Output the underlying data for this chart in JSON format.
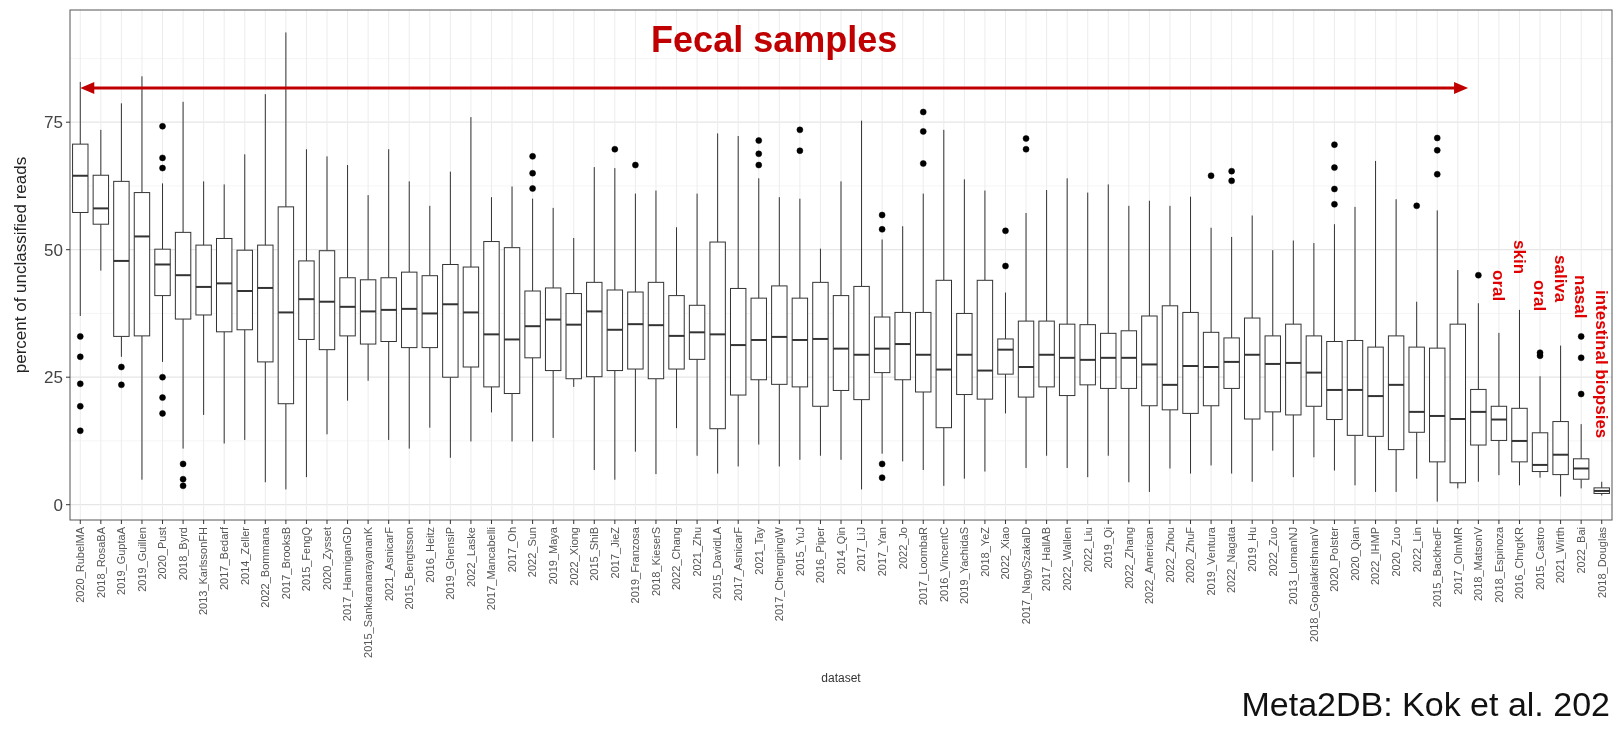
{
  "chart_data": {
    "type": "box",
    "ylabel": "percent of unclassified reads",
    "xlabel": "dataset",
    "ylim": [
      -3,
      97
    ],
    "yticks": [
      0,
      25,
      50,
      75
    ],
    "grid": true,
    "annotations": [
      "Fecal samples",
      "oral",
      "skin",
      "oral",
      "saliva",
      "nasal",
      "intestinal biopsies",
      "Meta2DB: Kok et al. 202"
    ],
    "categories": [
      "2020_RubelMA",
      "2018_RosaBA",
      "2019_GuptaA",
      "2019_Guillen",
      "2020_Pust",
      "2018_Byrd",
      "2013_KarlssonFH",
      "2017_Bedarf",
      "2014_Zeller",
      "2022_Bommana",
      "2017_BrooksB",
      "2015_FengQ",
      "2020_Zysset",
      "2017_HanniganGD",
      "2015_SankaranarayananK",
      "2021_AsnicarF",
      "2015_Bengtsson",
      "2016_Heitz",
      "2019_GhensiP",
      "2022_Laske",
      "2017_Mancabelli",
      "2017_Oh",
      "2022_Sun",
      "2019_Maya",
      "2022_Xiong",
      "2015_ShiB",
      "2017_JieZ",
      "2019_Franzosa",
      "2018_KieserS",
      "2022_Chang",
      "2021_Zhu",
      "2015_DavidLA",
      "2017_AsnicarF",
      "2021_Tay",
      "2017_ChengpingW",
      "2015_YuJ",
      "2016_Piper",
      "2014_Qin",
      "2017_LiJ",
      "2017_Yan",
      "2022_Jo",
      "2017_LoombaR",
      "2016_VincentC",
      "2019_YachidaS",
      "2018_YeZ",
      "2022_Xiao",
      "2017_NagySzakalD",
      "2017_HallAB",
      "2022_Wallen",
      "2022_Liu",
      "2019_Qi",
      "2022_Zhang",
      "2022_American",
      "2022_Zhou",
      "2020_ZhuF",
      "2019_Ventura",
      "2022_Nagata",
      "2019_Hu",
      "2022_Zuo",
      "2013_LomanNJ",
      "2018_GopalakrishnanV",
      "2020_Polster",
      "2020_Qian",
      "2022_IHMP",
      "2020_Zuo",
      "2022_Lin",
      "2015_BackhedF",
      "2017_OlmMR",
      "2018_MatsonV",
      "2018_Espinoza",
      "2016_ChngKR",
      "2015_Castro",
      "2021_Wirth",
      "2022_Bai",
      "2018_Douglas"
    ],
    "boxes": [
      {
        "low": 37,
        "q1": 57.3,
        "median": 64.5,
        "q3": 70.7,
        "high": 82.9,
        "outliers": [
          33,
          29,
          23.7,
          19.3,
          14.5
        ]
      },
      {
        "low": 45.9,
        "q1": 55,
        "median": 58.1,
        "q3": 64.6,
        "high": 73.5
      },
      {
        "low": 29,
        "q1": 33,
        "median": 47.8,
        "q3": 63.4,
        "high": 78.7,
        "outliers": [
          27,
          23.5
        ]
      },
      {
        "low": 4.9,
        "q1": 33.1,
        "median": 52.6,
        "q3": 61.2,
        "high": 84
      },
      {
        "low": 28,
        "q1": 41,
        "median": 47.1,
        "q3": 50.1,
        "high": 63,
        "outliers": [
          66,
          68,
          74.2,
          25,
          21,
          17.9
        ]
      },
      {
        "low": 11,
        "q1": 36.4,
        "median": 45,
        "q3": 53.4,
        "high": 79,
        "outliers": [
          8,
          5,
          3.7
        ]
      },
      {
        "low": 17.6,
        "q1": 37.2,
        "median": 42.7,
        "q3": 50.9,
        "high": 63.4
      },
      {
        "low": 12,
        "q1": 33.9,
        "median": 43.4,
        "q3": 52.2,
        "high": 62.8
      },
      {
        "low": 12.7,
        "q1": 34.3,
        "median": 41.9,
        "q3": 49.9,
        "high": 68.7
      },
      {
        "low": 4.4,
        "q1": 28,
        "median": 42.5,
        "q3": 50.9,
        "high": 80.5
      },
      {
        "low": 3,
        "q1": 19.8,
        "median": 37.7,
        "q3": 58.4,
        "high": 92.6
      },
      {
        "low": 5.4,
        "q1": 32.4,
        "median": 40.3,
        "q3": 47.8,
        "high": 69.7
      },
      {
        "low": 13.8,
        "q1": 30.4,
        "median": 39.8,
        "q3": 49.8,
        "high": 68.3
      },
      {
        "low": 20.4,
        "q1": 33.1,
        "median": 38.8,
        "q3": 44.5,
        "high": 66.6
      },
      {
        "low": 24.3,
        "q1": 31.5,
        "median": 37.9,
        "q3": 44.1,
        "high": 60.7
      },
      {
        "low": 12.7,
        "q1": 32,
        "median": 38.2,
        "q3": 44.5,
        "high": 69.7
      },
      {
        "low": 11,
        "q1": 30.8,
        "median": 38.4,
        "q3": 45.6,
        "high": 63.4
      },
      {
        "low": 15.1,
        "q1": 30.8,
        "median": 37.5,
        "q3": 44.9,
        "high": 58.6
      },
      {
        "low": 9.2,
        "q1": 25,
        "median": 39.3,
        "q3": 47.1,
        "high": 65.3
      },
      {
        "low": 12.4,
        "q1": 27,
        "median": 37.7,
        "q3": 46.6,
        "high": 76
      },
      {
        "low": 18.1,
        "q1": 23.1,
        "median": 33.4,
        "q3": 51.6,
        "high": 60.3
      },
      {
        "low": 12.4,
        "q1": 21.8,
        "median": 32.4,
        "q3": 50.4,
        "high": 62.4
      },
      {
        "low": 12.4,
        "q1": 28.8,
        "median": 35,
        "q3": 41.9,
        "high": 60,
        "outliers": [
          62,
          65,
          68.3
        ]
      },
      {
        "low": 13.1,
        "q1": 26.3,
        "median": 36.3,
        "q3": 42.5,
        "high": 58.2
      },
      {
        "low": 23.1,
        "q1": 24.7,
        "median": 35.3,
        "q3": 41.4,
        "high": 52.3
      },
      {
        "low": 6.8,
        "q1": 25.1,
        "median": 37.9,
        "q3": 43.6,
        "high": 66.2
      },
      {
        "low": 4.9,
        "q1": 26.3,
        "median": 34.3,
        "q3": 42.1,
        "high": 66,
        "outliers": [
          69.7
        ]
      },
      {
        "low": 10.4,
        "q1": 26.6,
        "median": 35.4,
        "q3": 41.7,
        "high": 61,
        "outliers": [
          66.6
        ]
      },
      {
        "low": 6,
        "q1": 24.7,
        "median": 35.2,
        "q3": 43.6,
        "high": 61.6
      },
      {
        "low": 15,
        "q1": 26.6,
        "median": 33.1,
        "q3": 41,
        "high": 54.4
      },
      {
        "low": 9.6,
        "q1": 28.5,
        "median": 33.8,
        "q3": 39.1,
        "high": 61
      },
      {
        "low": 6.1,
        "q1": 14.9,
        "median": 33.4,
        "q3": 51.5,
        "high": 72.8
      },
      {
        "low": 7.5,
        "q1": 21.5,
        "median": 31.3,
        "q3": 42.4,
        "high": 72.3
      },
      {
        "low": 11.8,
        "q1": 24.5,
        "median": 32.3,
        "q3": 40.5,
        "high": 64,
        "outliers": [
          66.6,
          68.8,
          71.4
        ]
      },
      {
        "low": 7.5,
        "q1": 23.6,
        "median": 32.9,
        "q3": 42.9,
        "high": 60.3
      },
      {
        "low": 8.8,
        "q1": 23.1,
        "median": 32.3,
        "q3": 40.5,
        "high": 60,
        "outliers": [
          69.4,
          73.5
        ]
      },
      {
        "low": 9.6,
        "q1": 19.3,
        "median": 32.5,
        "q3": 43.6,
        "high": 50.2
      },
      {
        "low": 8.8,
        "q1": 22.4,
        "median": 30.6,
        "q3": 41,
        "high": 63.4
      },
      {
        "low": 3,
        "q1": 20.6,
        "median": 29.4,
        "q3": 42.8,
        "high": 75.3
      },
      {
        "low": 10,
        "q1": 25.9,
        "median": 30.6,
        "q3": 36.8,
        "high": 52,
        "outliers": [
          54,
          56.8,
          8,
          5.3
        ]
      },
      {
        "low": 8.5,
        "q1": 24.5,
        "median": 31.5,
        "q3": 37.7,
        "high": 54.6
      },
      {
        "low": 6.8,
        "q1": 22.1,
        "median": 29.4,
        "q3": 37.7,
        "high": 61,
        "outliers": [
          66.9,
          73.2,
          77
        ]
      },
      {
        "low": 3.7,
        "q1": 15.1,
        "median": 26.5,
        "q3": 44,
        "high": 73.5
      },
      {
        "low": 5.1,
        "q1": 21.6,
        "median": 29.4,
        "q3": 37.5,
        "high": 63.8
      },
      {
        "low": 6.5,
        "q1": 20.7,
        "median": 26.3,
        "q3": 44,
        "high": 61.6
      },
      {
        "low": 17.9,
        "q1": 25.6,
        "median": 30.4,
        "q3": 32.5,
        "high": 41.6,
        "outliers": [
          46.8,
          53.7
        ]
      },
      {
        "low": 7.2,
        "q1": 21.1,
        "median": 27,
        "q3": 36,
        "high": 57.2,
        "outliers": [
          69.7,
          71.8
        ]
      },
      {
        "low": 9.6,
        "q1": 23.1,
        "median": 29.4,
        "q3": 36,
        "high": 61.7
      },
      {
        "low": 7.2,
        "q1": 21.4,
        "median": 28.8,
        "q3": 35.4,
        "high": 64
      },
      {
        "low": 5.4,
        "q1": 23.5,
        "median": 28.4,
        "q3": 35.3,
        "high": 61.2
      },
      {
        "low": 9.6,
        "q1": 22.8,
        "median": 28.8,
        "q3": 33.6,
        "high": 62.8
      },
      {
        "low": 4.4,
        "q1": 22.8,
        "median": 28.8,
        "q3": 34.1,
        "high": 58.6
      },
      {
        "low": 2.5,
        "q1": 19.4,
        "median": 27.5,
        "q3": 37,
        "high": 59.6
      },
      {
        "low": 7.1,
        "q1": 18.6,
        "median": 23.5,
        "q3": 39,
        "high": 58.6
      },
      {
        "low": 6.1,
        "q1": 17.9,
        "median": 27.2,
        "q3": 37.7,
        "high": 60.4
      },
      {
        "low": 7.7,
        "q1": 19.4,
        "median": 27,
        "q3": 33.8,
        "high": 54.3,
        "outliers": [
          64.5
        ]
      },
      {
        "low": 6.1,
        "q1": 22.8,
        "median": 28,
        "q3": 32.7,
        "high": 52.5,
        "outliers": [
          63.5,
          65.4
        ]
      },
      {
        "low": 4.5,
        "q1": 16.8,
        "median": 29.4,
        "q3": 36.6,
        "high": 56.7
      },
      {
        "low": 10.6,
        "q1": 18.2,
        "median": 27.6,
        "q3": 33.1,
        "high": 49.9
      },
      {
        "low": 5.4,
        "q1": 17.6,
        "median": 27.8,
        "q3": 35.4,
        "high": 51.8
      },
      {
        "low": 9.3,
        "q1": 19.3,
        "median": 25.9,
        "q3": 33.1,
        "high": 51.3
      },
      {
        "low": 6.7,
        "q1": 16.7,
        "median": 22.5,
        "q3": 32,
        "high": 55,
        "outliers": [
          58.9,
          61.9,
          66.1,
          70.6
        ]
      },
      {
        "low": 3.8,
        "q1": 13.6,
        "median": 22.5,
        "q3": 32.2,
        "high": 58.4
      },
      {
        "low": 2.5,
        "q1": 13.4,
        "median": 21.3,
        "q3": 30.9,
        "high": 67.4
      },
      {
        "low": 2.5,
        "q1": 10.8,
        "median": 23.5,
        "q3": 33.1,
        "high": 59.9
      },
      {
        "low": 5.1,
        "q1": 14.2,
        "median": 18.2,
        "q3": 30.9,
        "high": 39.8,
        "outliers": [
          58.6
        ]
      },
      {
        "low": 0.6,
        "q1": 8.4,
        "median": 17.4,
        "q3": 30.7,
        "high": 57.7,
        "outliers": [
          64.8,
          69.5,
          71.9
        ]
      },
      {
        "low": 3.2,
        "q1": 4.3,
        "median": 16.8,
        "q3": 35.4,
        "high": 46
      },
      {
        "low": 4.5,
        "q1": 11.7,
        "median": 18.2,
        "q3": 22.6,
        "high": 39.5,
        "outliers": [
          45
        ]
      },
      {
        "low": 5.8,
        "q1": 12.6,
        "median": 16.7,
        "q3": 19.3,
        "high": 33.7
      },
      {
        "low": 3.8,
        "q1": 8.4,
        "median": 12.5,
        "q3": 18.9,
        "high": 38.2
      },
      {
        "low": 5.3,
        "q1": 6.5,
        "median": 7.8,
        "q3": 14.1,
        "high": 25.2,
        "outliers": [
          29.2,
          29.8
        ]
      },
      {
        "low": 1.6,
        "q1": 5.9,
        "median": 9.8,
        "q3": 16.3,
        "high": 31.2
      },
      {
        "low": 3.2,
        "q1": 5,
        "median": 7.1,
        "q3": 9,
        "high": 15.8,
        "outliers": [
          21.7,
          28.8,
          33
        ]
      },
      {
        "low": 1.8,
        "q1": 2.2,
        "median": 2.7,
        "q3": 3.3,
        "high": 4.5
      }
    ]
  }
}
